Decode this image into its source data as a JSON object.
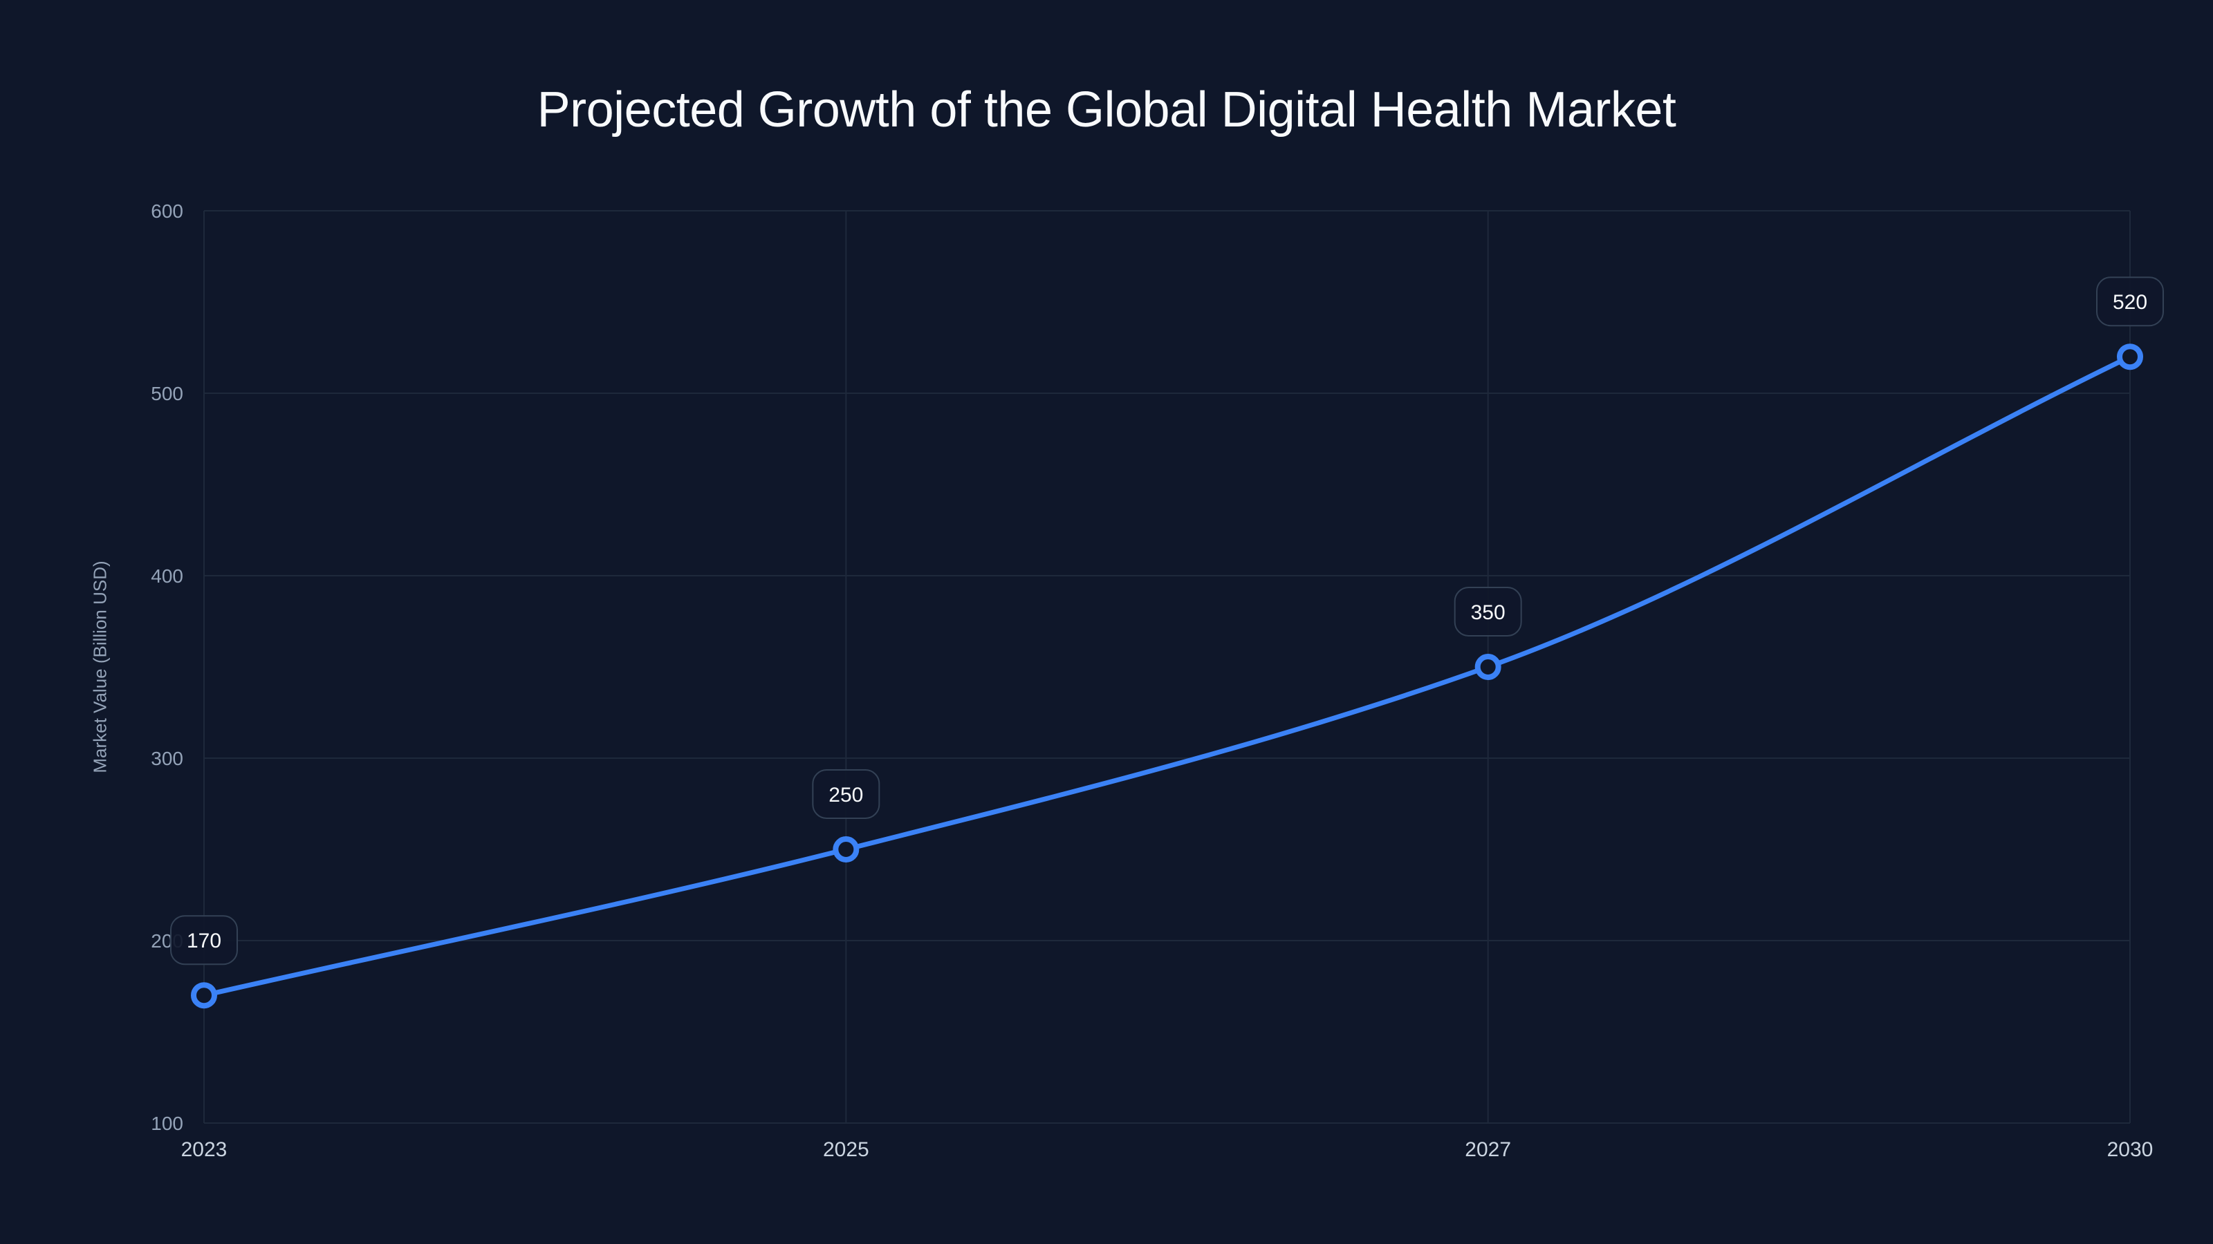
{
  "chart_data": {
    "type": "line",
    "title": "Projected Growth of the Global Digital Health Market",
    "xlabel": "",
    "ylabel": "Market Value (Billion USD)",
    "categories": [
      "2023",
      "2025",
      "2027",
      "2030"
    ],
    "series": [
      {
        "name": "Market Value",
        "values": [
          170,
          250,
          350,
          520
        ],
        "color": "#3b82f6"
      }
    ],
    "ylim": [
      100,
      600
    ],
    "yticks": [
      100,
      200,
      300,
      400,
      500,
      600
    ],
    "grid": true,
    "legend": "none",
    "data_labels": [
      "170",
      "250",
      "350",
      "520"
    ]
  },
  "colors": {
    "background": "#0f172a",
    "grid": "#1e293b",
    "line": "#3b82f6",
    "title": "#f8fafc",
    "y_tick": "#94a3b8",
    "x_tick": "#cbd5e1",
    "callout_border": "#334155"
  }
}
